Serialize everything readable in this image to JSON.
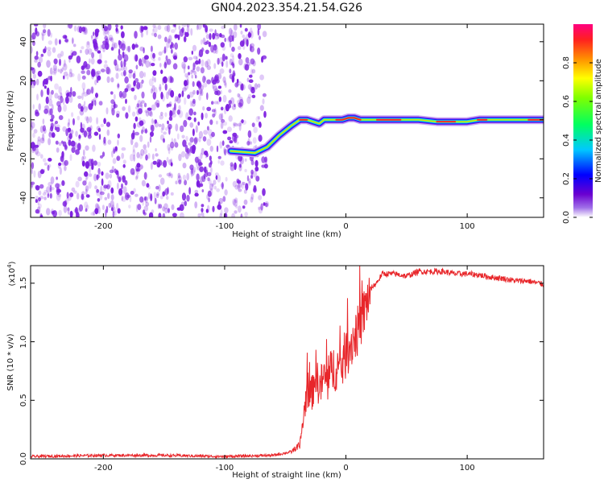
{
  "title": "GN04.2023.354.21.54.G26",
  "colors": {
    "snr_line": "#e8262a",
    "noise_purple": "#7d1fe0",
    "axis": "#000000"
  },
  "chart_data": [
    {
      "type": "heatmap",
      "xlabel": "Height of straight line (km)",
      "ylabel": "Frequency (Hz)",
      "xlim": [
        -260,
        163
      ],
      "ylim": [
        -50,
        49
      ],
      "xticks": [
        -200,
        -100,
        0,
        100
      ],
      "yticks": [
        -40,
        -20,
        0,
        20,
        40
      ],
      "colorbar": {
        "label": "Normalized spectral amplitude",
        "range": [
          0,
          1
        ],
        "ticks": [
          "0.0",
          "0.2",
          "0.4",
          "0.6",
          "0.8"
        ],
        "colormap": "rainbow"
      },
      "noise_region_x": [
        -260,
        -65
      ],
      "signal_track": {
        "x": [
          -95,
          -75,
          -65,
          -55,
          -45,
          -38,
          -32,
          -27,
          -22,
          -18,
          -13,
          -8,
          -3,
          2,
          7,
          12,
          20,
          40,
          60,
          75,
          90,
          100,
          110,
          125,
          145,
          163
        ],
        "freq": [
          -16,
          -17,
          -14,
          -8,
          -3,
          0,
          0,
          -1,
          -2,
          0,
          0,
          0,
          0,
          1,
          1,
          0,
          0,
          0,
          0,
          -1,
          -1,
          -1,
          0,
          0,
          0,
          0
        ]
      }
    },
    {
      "type": "line",
      "xlabel": "Height of straight line (km)",
      "ylabel": "SNR (10 * v/v)",
      "multiplier_label": "(x10",
      "multiplier_exp": "4",
      "multiplier_close": ")",
      "xlim": [
        -260,
        163
      ],
      "ylim": [
        0,
        1.65
      ],
      "xticks": [
        -200,
        -100,
        0,
        100
      ],
      "yticks": [
        "0.0",
        "0.5",
        "1.0",
        "1.5"
      ],
      "series": [
        {
          "x": [
            -260,
            -200,
            -150,
            -100,
            -60,
            -45,
            -38,
            -35,
            -32,
            -28,
            -25,
            -22,
            -18,
            -15,
            -12,
            -8,
            -5,
            0,
            5,
            10,
            15,
            20,
            25,
            30,
            40,
            50,
            60,
            70,
            80,
            90,
            100,
            110,
            120,
            130,
            140,
            150,
            163
          ],
          "values": [
            0.02,
            0.03,
            0.03,
            0.02,
            0.03,
            0.06,
            0.12,
            0.35,
            0.6,
            0.55,
            0.75,
            0.6,
            0.7,
            0.65,
            0.75,
            0.8,
            0.75,
            0.9,
            1.0,
            1.1,
            1.25,
            1.45,
            1.5,
            1.58,
            1.58,
            1.56,
            1.6,
            1.6,
            1.6,
            1.58,
            1.58,
            1.57,
            1.55,
            1.54,
            1.52,
            1.52,
            1.49
          ]
        }
      ]
    }
  ]
}
